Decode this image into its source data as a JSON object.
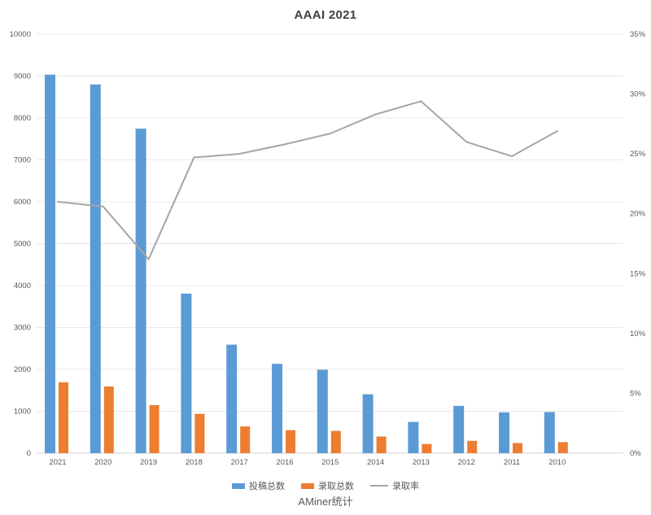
{
  "title": "AAAI 2021",
  "source_label": "AMiner统计",
  "colors": {
    "submissions": "#5B9BD5",
    "accepted": "#ED7D31",
    "rate_line": "#A5A5A5",
    "grid": "#E8E8E8",
    "axis_line": "#D0D0D0",
    "tick_text": "#595959",
    "title_text": "#404040"
  },
  "legend": [
    {
      "label": "投稿总数",
      "marker": "bar",
      "color_key": "submissions"
    },
    {
      "label": "录取总数",
      "marker": "bar",
      "color_key": "accepted"
    },
    {
      "label": "录取率",
      "marker": "line",
      "color_key": "rate_line"
    }
  ],
  "chart_data": {
    "type": "bar",
    "subtype": "grouped-bars-with-line-combo",
    "title": "AAAI 2021",
    "categories": [
      "2021",
      "2020",
      "2019",
      "2018",
      "2017",
      "2016",
      "2015",
      "2014",
      "2013",
      "2012",
      "2011",
      "2010"
    ],
    "series": [
      {
        "name": "投稿总数",
        "type": "bar",
        "axis": "left",
        "values": [
          9034,
          8800,
          7745,
          3808,
          2590,
          2132,
          1991,
          1406,
          746,
          1129,
          975,
          982
        ]
      },
      {
        "name": "录取总数",
        "type": "bar",
        "axis": "left",
        "values": [
          1692,
          1591,
          1147,
          938,
          638,
          549,
          531,
          398,
          219,
          294,
          242,
          264
        ]
      },
      {
        "name": "录取率",
        "type": "line",
        "axis": "right",
        "values_percent": [
          21.0,
          20.6,
          16.2,
          24.7,
          25.0,
          25.8,
          26.7,
          28.3,
          29.4,
          26.0,
          24.8,
          26.9
        ]
      }
    ],
    "left_axis": {
      "min": 0,
      "max": 10000,
      "step": 1000,
      "ticks": [
        "0",
        "1000",
        "2000",
        "3000",
        "4000",
        "5000",
        "6000",
        "7000",
        "8000",
        "9000",
        "10000"
      ]
    },
    "right_axis": {
      "min": 0,
      "max": 35,
      "step": 5,
      "ticks": [
        "0%",
        "5%",
        "10%",
        "15%",
        "20%",
        "25%",
        "30%",
        "35%"
      ]
    },
    "grid": true,
    "legend_position": "bottom",
    "source": "AMiner统计"
  }
}
